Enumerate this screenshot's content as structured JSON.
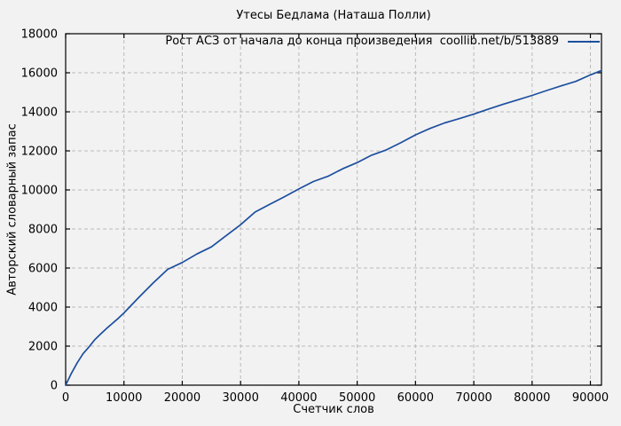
{
  "chart_data": {
    "type": "line",
    "title": "Утесы Бедлама (Наташа Полли)",
    "xlabel": "Счетчик слов",
    "ylabel": "Авторский словарный запас",
    "legend_position": "top-right-inside",
    "grid": true,
    "xlim": [
      0,
      91900
    ],
    "ylim": [
      0,
      18000
    ],
    "x_ticks": [
      0,
      10000,
      20000,
      30000,
      40000,
      50000,
      60000,
      70000,
      80000,
      90000
    ],
    "y_ticks": [
      0,
      2000,
      4000,
      6000,
      8000,
      10000,
      12000,
      14000,
      16000,
      18000
    ],
    "colors": {
      "line": "#1d4f9e",
      "grid": "#b9b9b9",
      "axis": "#000000",
      "background": "#f2f2f2",
      "text": "#000000"
    },
    "series": [
      {
        "name": "Рост АСЗ от начала до конца произведения  coollib.net/b/513889",
        "x": [
          0,
          1000,
          2000,
          3000,
          4000,
          5000,
          6000,
          7000,
          8000,
          9000,
          10000,
          12500,
          15000,
          17500,
          20000,
          22500,
          25000,
          27500,
          30000,
          32500,
          35000,
          37500,
          40000,
          42500,
          45000,
          47500,
          50000,
          52500,
          55000,
          57500,
          60000,
          62500,
          65000,
          67500,
          70000,
          72500,
          75000,
          77500,
          80000,
          82500,
          85000,
          87500,
          90000,
          91900
        ],
        "y": [
          0,
          620,
          1150,
          1620,
          1960,
          2330,
          2620,
          2900,
          3160,
          3420,
          3700,
          4480,
          5230,
          5930,
          6280,
          6720,
          7080,
          7650,
          8220,
          8870,
          9260,
          9650,
          10050,
          10430,
          10700,
          11080,
          11400,
          11780,
          12050,
          12420,
          12820,
          13150,
          13430,
          13650,
          13880,
          14140,
          14380,
          14610,
          14840,
          15090,
          15330,
          15560,
          15890,
          16120
        ]
      }
    ]
  }
}
